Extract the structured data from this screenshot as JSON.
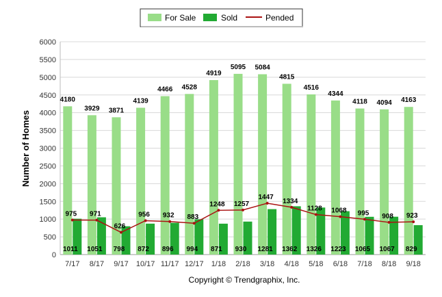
{
  "chart_data": {
    "type": "bar",
    "categories": [
      "7/17",
      "8/17",
      "9/17",
      "10/17",
      "11/17",
      "12/17",
      "1/18",
      "2/18",
      "3/18",
      "4/18",
      "5/18",
      "6/18",
      "7/18",
      "8/18",
      "9/18"
    ],
    "series": [
      {
        "name": "For Sale",
        "type": "bar",
        "color": "#99dd88",
        "values": [
          4180,
          3929,
          3871,
          4139,
          4466,
          4528,
          4919,
          5095,
          5084,
          4815,
          4516,
          4344,
          4118,
          4094,
          4163
        ]
      },
      {
        "name": "Sold",
        "type": "bar",
        "color": "#22aa33",
        "values": [
          1011,
          1051,
          798,
          872,
          896,
          994,
          871,
          930,
          1281,
          1362,
          1326,
          1223,
          1065,
          1067,
          829
        ]
      },
      {
        "name": "Pended",
        "type": "line",
        "color": "#aa1111",
        "values": [
          975,
          971,
          626,
          956,
          932,
          883,
          1248,
          1257,
          1447,
          1334,
          1128,
          1068,
          995,
          908,
          923
        ]
      }
    ],
    "ylabel": "Number of Homes",
    "ylim": [
      0,
      6000
    ],
    "yticks": [
      0,
      500,
      1000,
      1500,
      2000,
      2500,
      3000,
      3500,
      4000,
      4500,
      5000,
      5500,
      6000
    ],
    "grid": true,
    "legend": "top-center"
  },
  "copyright": "Copyright © Trendgraphix, Inc."
}
